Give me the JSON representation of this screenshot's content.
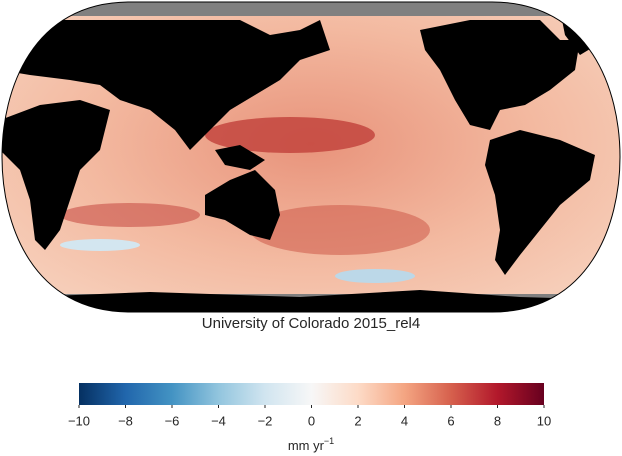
{
  "chart_data": {
    "type": "map",
    "title": "University of Colorado 2015_rel4",
    "colorbar": {
      "lim": [
        -10,
        10
      ],
      "colormap": "RdBu_r",
      "ticks": [
        {
          "value": -10,
          "label": "−10"
        },
        {
          "value": -8,
          "label": "−8"
        },
        {
          "value": -6,
          "label": "−6"
        },
        {
          "value": -4,
          "label": "−4"
        },
        {
          "value": -2,
          "label": "−2"
        },
        0,
        2,
        4,
        6,
        8,
        10
      ],
      "label": "mm yr",
      "label_sup": "−1"
    }
  }
}
